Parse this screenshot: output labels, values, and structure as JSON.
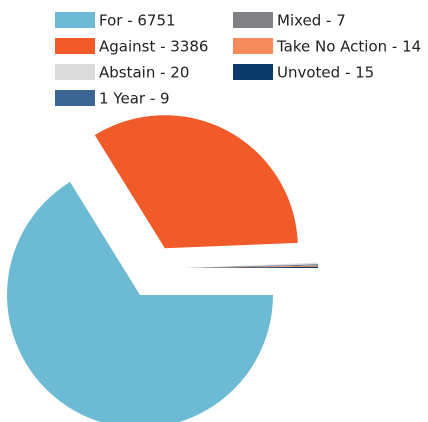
{
  "chart_data": {
    "type": "pie",
    "categories": [
      "For - 6751",
      "Against - 3386",
      "Abstain - 20",
      "1 Year - 9",
      "Mixed - 7",
      "Take No Action - 14",
      "Unvoted - 15"
    ],
    "values": [
      6751,
      3386,
      20,
      9,
      7,
      14,
      15
    ],
    "colors": [
      "#6dbad4",
      "#f15a29",
      "#dcdcdc",
      "#3b6593",
      "#808085",
      "#f58b5a",
      "#0b3b6b"
    ],
    "legend": "top"
  }
}
